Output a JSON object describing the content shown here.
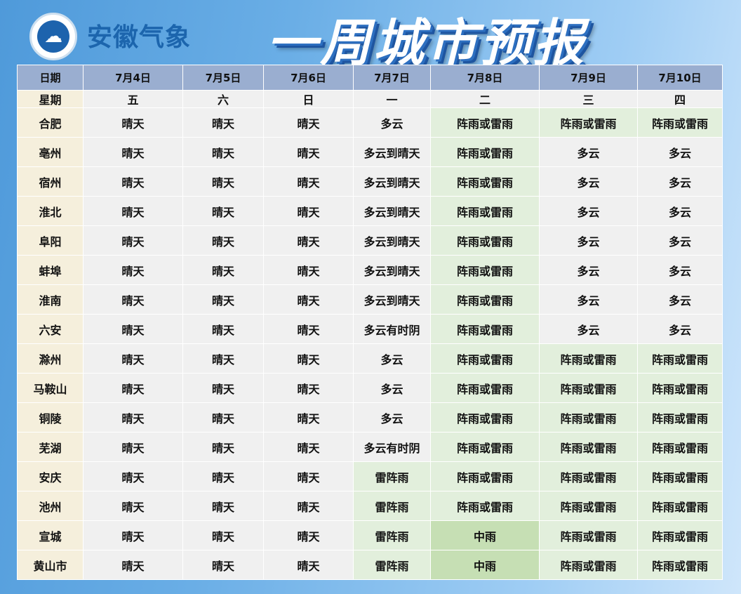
{
  "header": {
    "brand": "安徽气象",
    "title": "一周城市预报",
    "logo_icon": "anhui-meteorological-bureau-logo"
  },
  "table": {
    "date_label": "日期",
    "weekday_label": "星期",
    "dates": [
      "7月4日",
      "7月5日",
      "7月6日",
      "7月7日",
      "7月8日",
      "7月9日",
      "7月10日"
    ],
    "weekdays": [
      "五",
      "六",
      "日",
      "一",
      "二",
      "三",
      "四"
    ],
    "colors": {
      "header": "#9aaed0",
      "dry": "#f0f0f0",
      "rain": "#e2efdc",
      "moderate_rain": "#c6dfb4"
    },
    "rows": [
      {
        "city": "合肥",
        "w": [
          "晴天",
          "晴天",
          "晴天",
          "多云",
          "阵雨或雷雨",
          "阵雨或雷雨",
          "阵雨或雷雨"
        ]
      },
      {
        "city": "亳州",
        "w": [
          "晴天",
          "晴天",
          "晴天",
          "多云到晴天",
          "阵雨或雷雨",
          "多云",
          "多云"
        ]
      },
      {
        "city": "宿州",
        "w": [
          "晴天",
          "晴天",
          "晴天",
          "多云到晴天",
          "阵雨或雷雨",
          "多云",
          "多云"
        ]
      },
      {
        "city": "淮北",
        "w": [
          "晴天",
          "晴天",
          "晴天",
          "多云到晴天",
          "阵雨或雷雨",
          "多云",
          "多云"
        ]
      },
      {
        "city": "阜阳",
        "w": [
          "晴天",
          "晴天",
          "晴天",
          "多云到晴天",
          "阵雨或雷雨",
          "多云",
          "多云"
        ]
      },
      {
        "city": "蚌埠",
        "w": [
          "晴天",
          "晴天",
          "晴天",
          "多云到晴天",
          "阵雨或雷雨",
          "多云",
          "多云"
        ]
      },
      {
        "city": "淮南",
        "w": [
          "晴天",
          "晴天",
          "晴天",
          "多云到晴天",
          "阵雨或雷雨",
          "多云",
          "多云"
        ]
      },
      {
        "city": "六安",
        "w": [
          "晴天",
          "晴天",
          "晴天",
          "多云有时阴",
          "阵雨或雷雨",
          "多云",
          "多云"
        ]
      },
      {
        "city": "滁州",
        "w": [
          "晴天",
          "晴天",
          "晴天",
          "多云",
          "阵雨或雷雨",
          "阵雨或雷雨",
          "阵雨或雷雨"
        ]
      },
      {
        "city": "马鞍山",
        "w": [
          "晴天",
          "晴天",
          "晴天",
          "多云",
          "阵雨或雷雨",
          "阵雨或雷雨",
          "阵雨或雷雨"
        ]
      },
      {
        "city": "铜陵",
        "w": [
          "晴天",
          "晴天",
          "晴天",
          "多云",
          "阵雨或雷雨",
          "阵雨或雷雨",
          "阵雨或雷雨"
        ]
      },
      {
        "city": "芜湖",
        "w": [
          "晴天",
          "晴天",
          "晴天",
          "多云有时阴",
          "阵雨或雷雨",
          "阵雨或雷雨",
          "阵雨或雷雨"
        ]
      },
      {
        "city": "安庆",
        "w": [
          "晴天",
          "晴天",
          "晴天",
          "雷阵雨",
          "阵雨或雷雨",
          "阵雨或雷雨",
          "阵雨或雷雨"
        ]
      },
      {
        "city": "池州",
        "w": [
          "晴天",
          "晴天",
          "晴天",
          "雷阵雨",
          "阵雨或雷雨",
          "阵雨或雷雨",
          "阵雨或雷雨"
        ]
      },
      {
        "city": "宣城",
        "w": [
          "晴天",
          "晴天",
          "晴天",
          "雷阵雨",
          "中雨",
          "阵雨或雷雨",
          "阵雨或雷雨"
        ]
      },
      {
        "city": "黄山市",
        "w": [
          "晴天",
          "晴天",
          "晴天",
          "雷阵雨",
          "中雨",
          "阵雨或雷雨",
          "阵雨或雷雨"
        ]
      }
    ]
  }
}
